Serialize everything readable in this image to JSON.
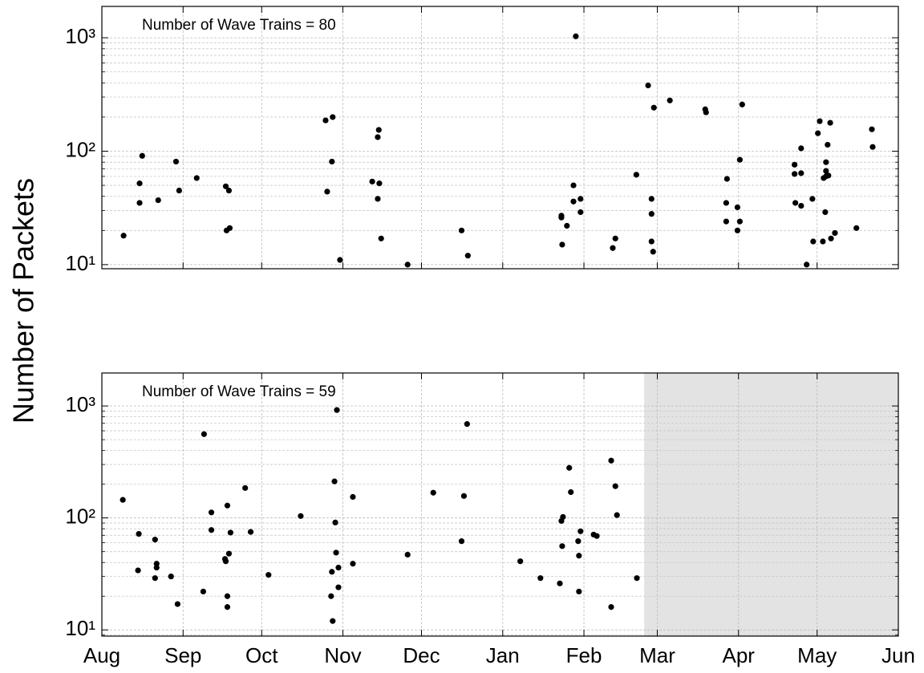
{
  "ylabel": "Number of Packets",
  "chart_data": [
    {
      "type": "scatter",
      "annotation": "Number of Wave Trains = 80",
      "color": "#000000",
      "x": [
        8.3,
        14.4,
        14.4,
        15.4,
        21.5,
        28.3,
        29.5,
        36.2,
        47.3,
        48.5,
        47.6,
        48.8,
        85.4,
        88.1,
        87.8,
        86,
        90.9,
        103.2,
        105.9,
        105.3,
        105.3,
        105.7,
        106.6,
        116.7,
        137.3,
        139.7,
        175.4,
        175.4,
        177.5,
        175.7,
        180,
        180,
        182.7,
        182.7,
        180.9,
        195,
        196,
        204,
        208.5,
        210.7,
        209.8,
        209.8,
        209.8,
        210.4,
        216.8,
        230.3,
        230.6,
        244.4,
        238.6,
        238.3,
        238.3,
        243.5,
        242.6,
        242.6,
        243.5,
        264.4,
        264.4,
        266.9,
        266.9,
        264.7,
        266.9,
        269,
        271.2,
        271.5,
        273.3,
        274,
        275.2,
        275.5,
        276.4,
        276.4,
        276.4,
        277.3,
        276.1,
        278,
        277,
        278.3,
        279.8,
        288,
        293.9,
        294.2
      ],
      "values": [
        18,
        52,
        35,
        91,
        37,
        81,
        45,
        58,
        49,
        45,
        20,
        21,
        187,
        200,
        81,
        44,
        11,
        54,
        52,
        38,
        133,
        154,
        17,
        10,
        20,
        12,
        27,
        26,
        22,
        15,
        50,
        36,
        38,
        29,
        1030,
        14,
        17,
        62,
        380,
        242,
        38,
        28,
        16,
        13,
        280,
        234,
        220,
        258,
        57,
        35,
        24,
        84,
        32,
        20,
        24,
        76,
        63,
        64,
        106,
        35,
        33,
        10,
        38,
        16,
        144,
        184,
        16,
        58,
        80,
        67,
        60,
        61,
        29,
        178,
        114,
        17,
        19,
        21,
        156,
        109
      ],
      "xlim": [
        0,
        304
      ],
      "xticks": [
        0,
        31,
        61,
        92,
        122,
        153,
        184,
        212,
        243,
        273,
        304
      ],
      "show_xtick_labels": false,
      "ylim": [
        9.2,
        1890
      ],
      "log_y": true,
      "yticks": [
        {
          "value": 10,
          "label": "10¹"
        },
        {
          "value": 100,
          "label": "10²"
        },
        {
          "value": 1000,
          "label": "10³"
        }
      ],
      "grid": true,
      "minor_grid": true
    },
    {
      "type": "scatter",
      "annotation": "Number of Wave Trains = 59",
      "color": "#000000",
      "x": [
        8,
        14.1,
        13.8,
        20.3,
        20.9,
        20.9,
        20.3,
        26.4,
        28.9,
        39,
        41.8,
        41.8,
        38.7,
        47.9,
        49.1,
        48.5,
        47,
        47.3,
        47.9,
        47.9,
        54.7,
        56.8,
        63.6,
        75.9,
        89.7,
        88.8,
        89.1,
        89.4,
        87.8,
        90.3,
        90.3,
        87.5,
        88.1,
        95.8,
        95.8,
        116.7,
        126.5,
        139.4,
        138.2,
        137.3,
        159.7,
        167.4,
        174.8,
        178.4,
        179,
        176,
        175.4,
        175.7,
        182.7,
        181.8,
        182.1,
        182.1,
        187.7,
        188.9,
        194.4,
        196,
        196.6,
        194.4,
        204.2
      ],
      "values": [
        145,
        72,
        34,
        64,
        39,
        36,
        29,
        30,
        17,
        560,
        112,
        78,
        22,
        129,
        74,
        48,
        43,
        41,
        20,
        16,
        185,
        75,
        31,
        104,
        920,
        212,
        91,
        49,
        33,
        36,
        24,
        20,
        12,
        154,
        39,
        47,
        168,
        690,
        157,
        62,
        41,
        29,
        26,
        280,
        170,
        102,
        94,
        56,
        76,
        62,
        46,
        22,
        71,
        69,
        325,
        192,
        106,
        16,
        29
      ],
      "xlim": [
        0,
        304
      ],
      "xticks": [
        {
          "value": 0,
          "label": "Aug"
        },
        {
          "value": 31,
          "label": "Sep"
        },
        {
          "value": 61,
          "label": "Oct"
        },
        {
          "value": 92,
          "label": "Nov"
        },
        {
          "value": 122,
          "label": "Dec"
        },
        {
          "value": 153,
          "label": "Jan"
        },
        {
          "value": 184,
          "label": "Feb"
        },
        {
          "value": 212,
          "label": "Mar"
        },
        {
          "value": 243,
          "label": "Apr"
        },
        {
          "value": 273,
          "label": "May"
        },
        {
          "value": 304,
          "label": "Jun"
        }
      ],
      "show_xtick_labels": true,
      "ylim": [
        8.8,
        1970
      ],
      "log_y": true,
      "yticks": [
        {
          "value": 10,
          "label": "10¹"
        },
        {
          "value": 100,
          "label": "10²"
        },
        {
          "value": 1000,
          "label": "10³"
        }
      ],
      "grid": true,
      "minor_grid": true,
      "shaded_xrange": [
        207,
        304
      ],
      "shade_color": "#e3e3e3"
    }
  ]
}
